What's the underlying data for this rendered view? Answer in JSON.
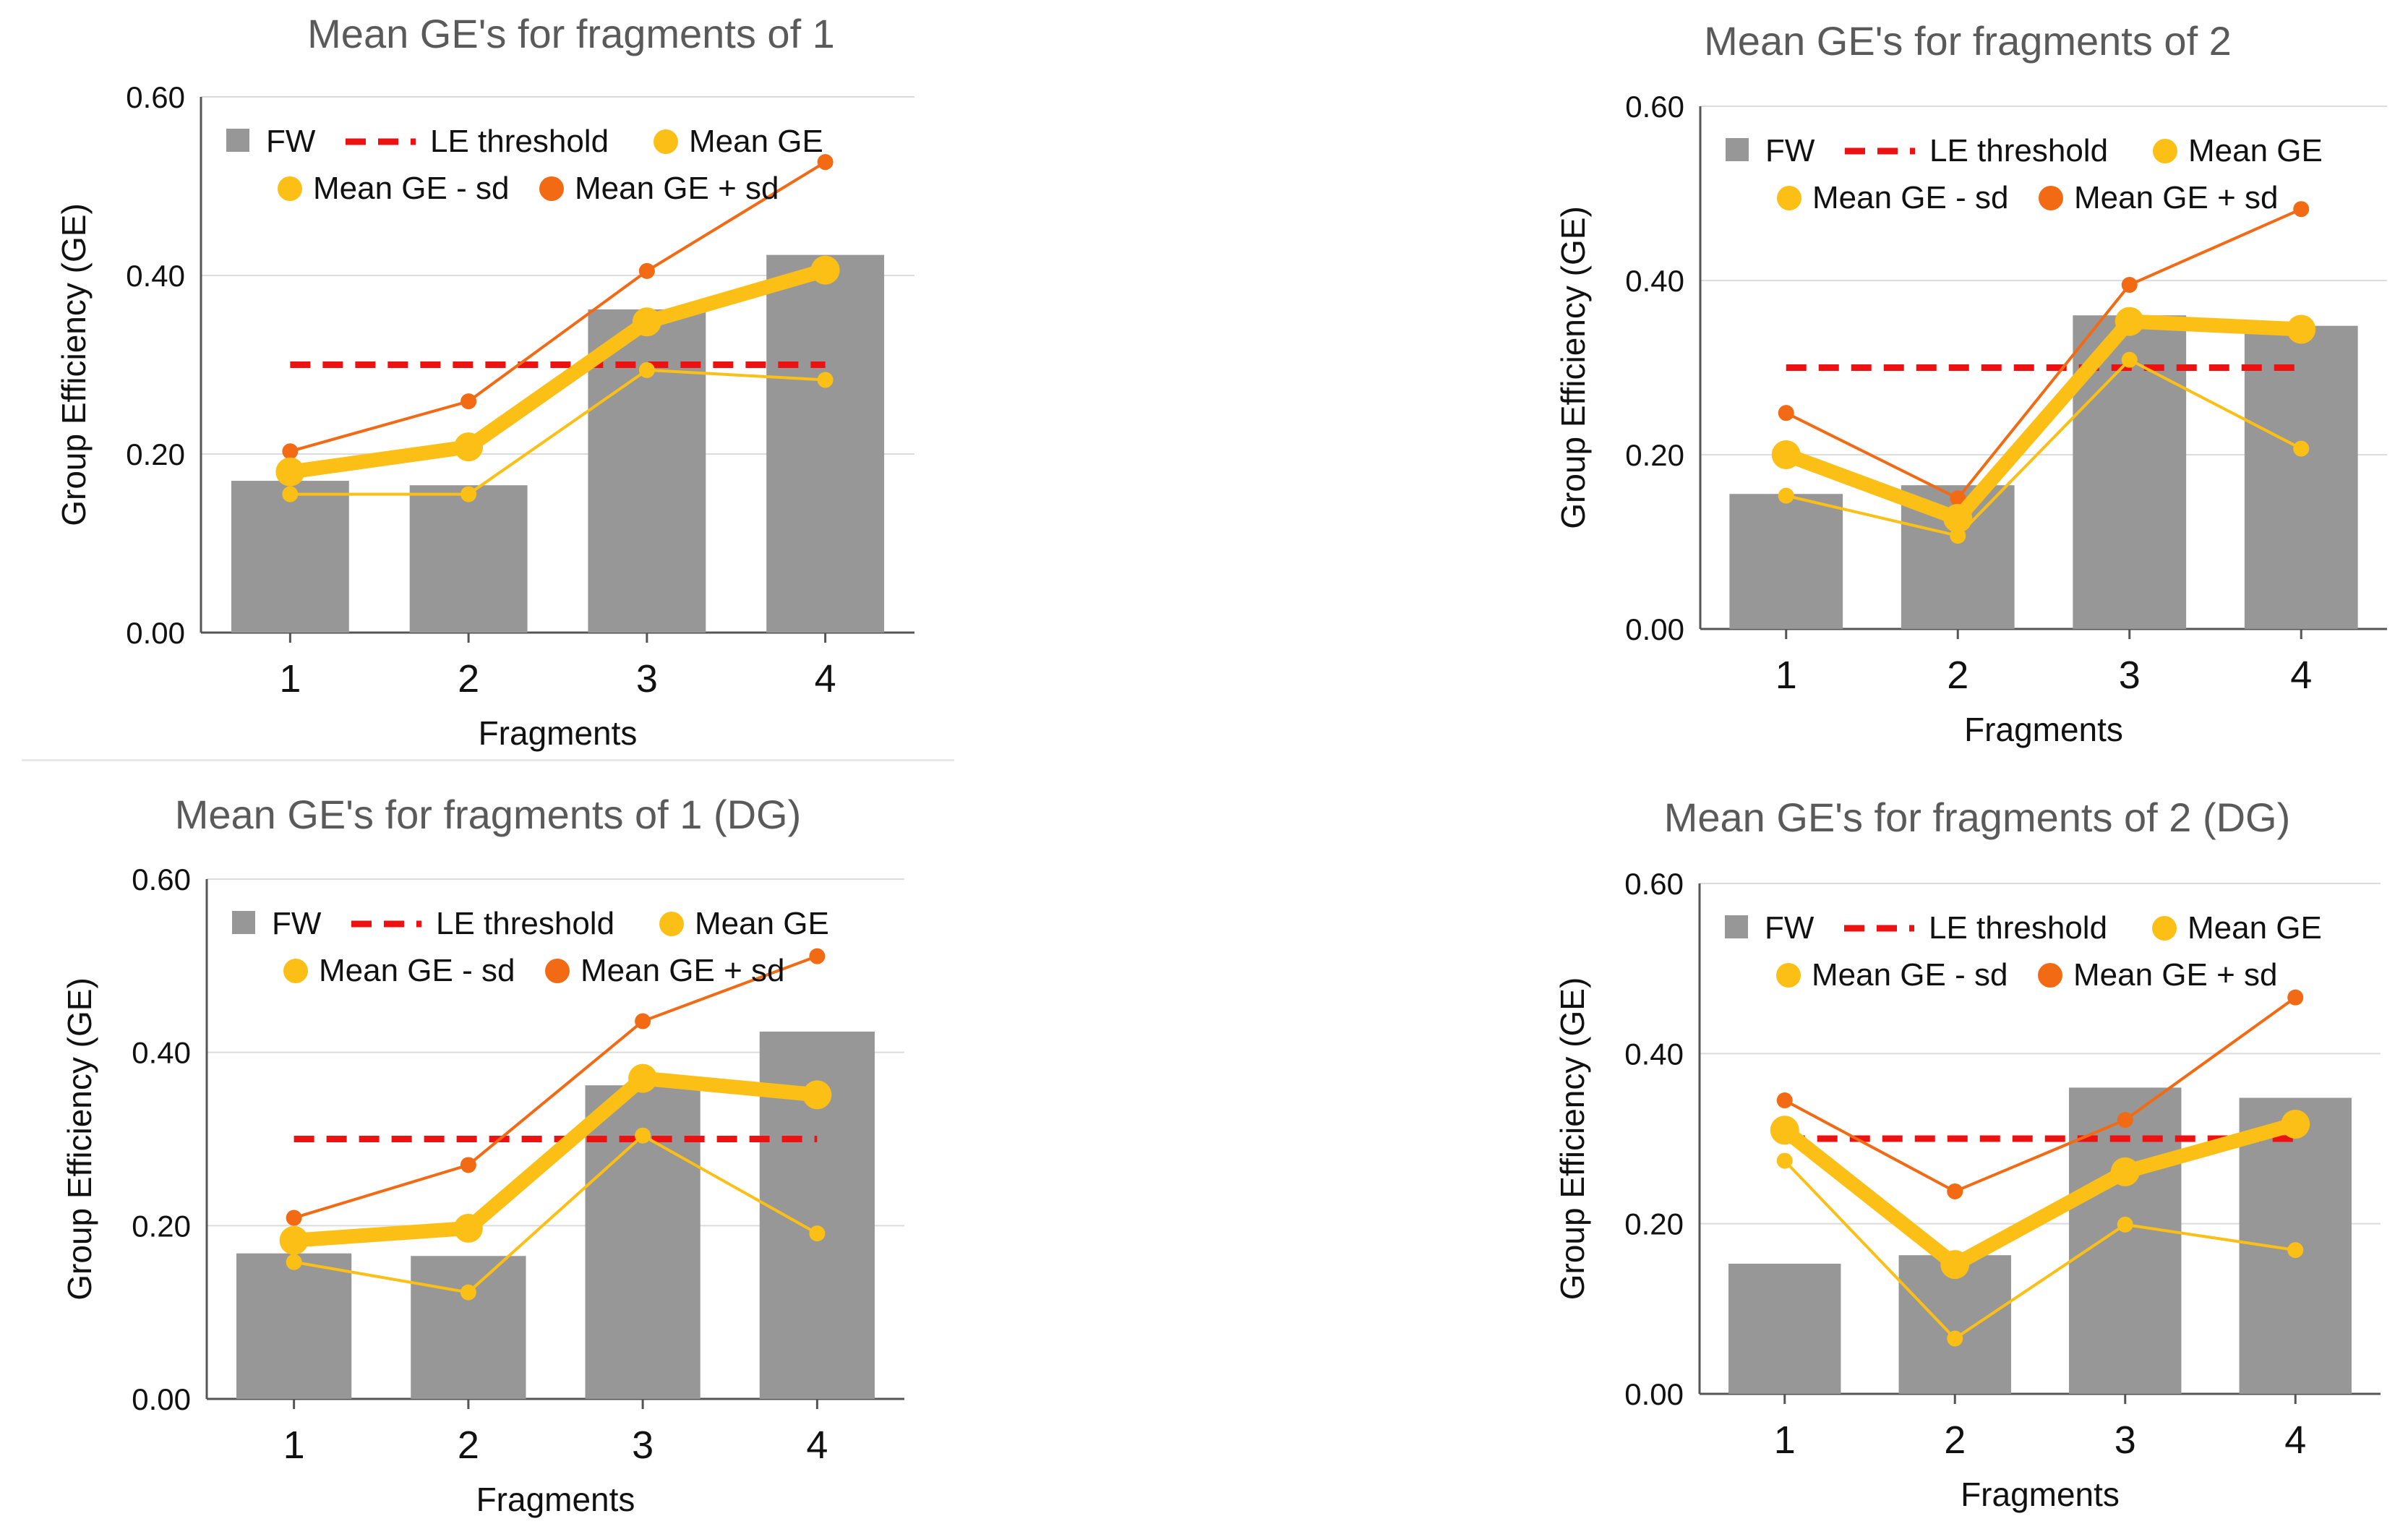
{
  "colors": {
    "bar": "#979797",
    "threshold": "#ee1111",
    "mean": "#fbbf16",
    "minus": "#fbbf16",
    "plus": "#f26a13",
    "axis": "#555555",
    "grid": "#dcdcdc",
    "title": "#5a5a5a",
    "text": "#111111"
  },
  "legend": {
    "fw": "FW",
    "threshold": "LE threshold",
    "mean": "Mean GE",
    "minus": "Mean GE - sd",
    "plus": "Mean GE + sd"
  },
  "chart_data": [
    {
      "type": "bar",
      "title": "Mean GE's for fragments of 1",
      "xlabel": "Fragments",
      "ylabel": "Group Efficiency (GE)",
      "ylim": [
        0,
        0.6
      ],
      "yticks": [
        "0.00",
        "0.20",
        "0.40",
        "0.60"
      ],
      "categories": [
        "1",
        "2",
        "3",
        "4"
      ],
      "series": [
        {
          "name": "FW",
          "kind": "bar",
          "values": [
            0.17,
            0.165,
            0.362,
            0.423
          ]
        },
        {
          "name": "LE threshold",
          "kind": "dashed",
          "values": [
            0.3,
            0.3,
            0.3,
            0.3
          ]
        },
        {
          "name": "Mean GE",
          "kind": "line",
          "values": [
            0.18,
            0.208,
            0.348,
            0.406
          ]
        },
        {
          "name": "Mean GE - sd",
          "kind": "line",
          "values": [
            0.155,
            0.155,
            0.294,
            0.283
          ]
        },
        {
          "name": "Mean GE + sd",
          "kind": "line",
          "values": [
            0.203,
            0.259,
            0.405,
            0.527
          ]
        }
      ]
    },
    {
      "type": "bar",
      "title": "Mean GE's for fragments of 2",
      "xlabel": "Fragments",
      "ylabel": "Group Efficiency (GE)",
      "ylim": [
        0,
        0.6
      ],
      "yticks": [
        "0.00",
        "0.20",
        "0.40",
        "0.60"
      ],
      "categories": [
        "1",
        "2",
        "3",
        "4"
      ],
      "series": [
        {
          "name": "FW",
          "kind": "bar",
          "values": [
            0.155,
            0.165,
            0.36,
            0.348
          ]
        },
        {
          "name": "LE threshold",
          "kind": "dashed",
          "values": [
            0.3,
            0.3,
            0.3,
            0.3
          ]
        },
        {
          "name": "Mean GE",
          "kind": "line",
          "values": [
            0.2,
            0.127,
            0.353,
            0.344
          ]
        },
        {
          "name": "Mean GE - sd",
          "kind": "line",
          "values": [
            0.153,
            0.107,
            0.309,
            0.207
          ]
        },
        {
          "name": "Mean GE + sd",
          "kind": "line",
          "values": [
            0.248,
            0.15,
            0.395,
            0.482
          ]
        }
      ]
    },
    {
      "type": "bar",
      "title": "Mean GE's for fragments of 1 (DG)",
      "xlabel": "Fragments",
      "ylabel": "Group Efficiency (GE)",
      "ylim": [
        0,
        0.6
      ],
      "yticks": [
        "0.00",
        "0.20",
        "0.40",
        "0.60"
      ],
      "categories": [
        "1",
        "2",
        "3",
        "4"
      ],
      "series": [
        {
          "name": "FW",
          "kind": "bar",
          "values": [
            0.168,
            0.165,
            0.362,
            0.424
          ]
        },
        {
          "name": "LE threshold",
          "kind": "dashed",
          "values": [
            0.3,
            0.3,
            0.3,
            0.3
          ]
        },
        {
          "name": "Mean GE",
          "kind": "line",
          "values": [
            0.183,
            0.197,
            0.37,
            0.351
          ]
        },
        {
          "name": "Mean GE - sd",
          "kind": "line",
          "values": [
            0.158,
            0.123,
            0.304,
            0.191
          ]
        },
        {
          "name": "Mean GE + sd",
          "kind": "line",
          "values": [
            0.209,
            0.27,
            0.436,
            0.511
          ]
        }
      ]
    },
    {
      "type": "bar",
      "title": "Mean GE's for fragments of 2 (DG)",
      "xlabel": "Fragments",
      "ylabel": "Group Efficiency (GE)",
      "ylim": [
        0,
        0.6
      ],
      "yticks": [
        "0.00",
        "0.20",
        "0.40",
        "0.60"
      ],
      "categories": [
        "1",
        "2",
        "3",
        "4"
      ],
      "series": [
        {
          "name": "FW",
          "kind": "bar",
          "values": [
            0.153,
            0.163,
            0.36,
            0.348
          ]
        },
        {
          "name": "LE threshold",
          "kind": "dashed",
          "values": [
            0.3,
            0.3,
            0.3,
            0.3
          ]
        },
        {
          "name": "Mean GE",
          "kind": "line",
          "values": [
            0.31,
            0.152,
            0.261,
            0.317
          ]
        },
        {
          "name": "Mean GE - sd",
          "kind": "line",
          "values": [
            0.274,
            0.065,
            0.199,
            0.169
          ]
        },
        {
          "name": "Mean GE + sd",
          "kind": "line",
          "values": [
            0.345,
            0.238,
            0.322,
            0.466
          ]
        }
      ]
    }
  ]
}
